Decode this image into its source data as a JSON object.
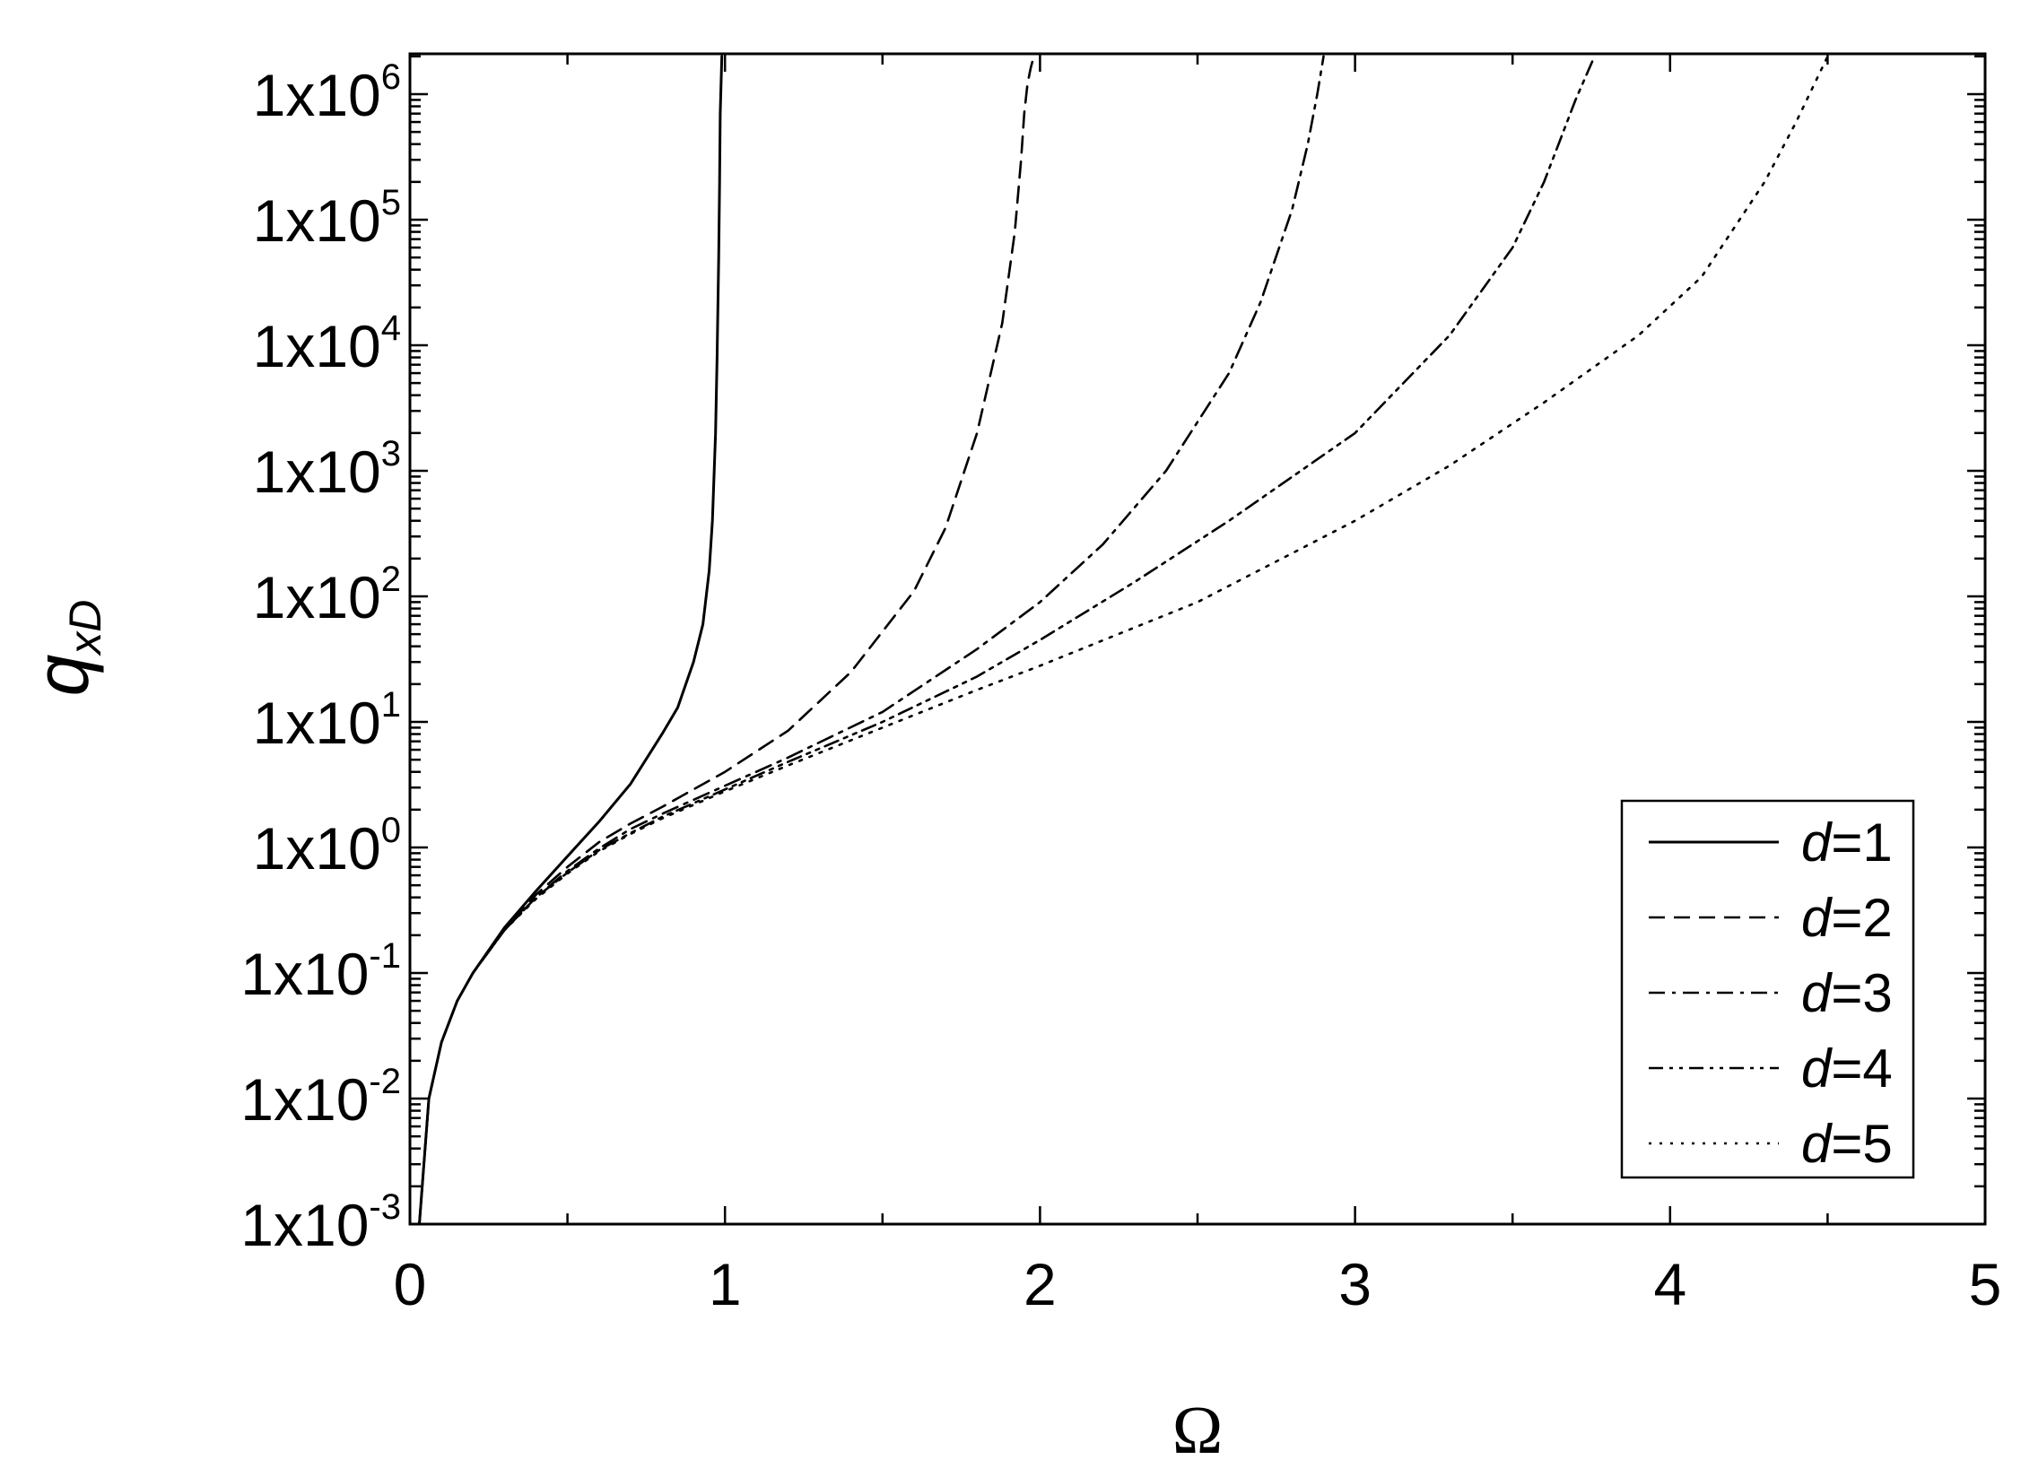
{
  "chart_data": {
    "type": "line",
    "title": "",
    "xlabel": "Ω",
    "ylabel": {
      "main": "q",
      "sub": "xD"
    },
    "x_scale": "linear",
    "y_scale": "log",
    "xlim": [
      0,
      5
    ],
    "ylim": [
      0.001,
      2000000
    ],
    "x_ticks": [
      0,
      1,
      2,
      3,
      4,
      5
    ],
    "x_tick_labels": [
      "0",
      "1",
      "2",
      "3",
      "4",
      "5"
    ],
    "y_ticks": [
      0.001,
      0.01,
      0.1,
      1,
      10,
      100,
      1000,
      10000,
      100000,
      1000000
    ],
    "y_tick_labels": [
      {
        "base": "1x10",
        "exp": "-3"
      },
      {
        "base": "1x10",
        "exp": "-2"
      },
      {
        "base": "1x10",
        "exp": "-1"
      },
      {
        "base": "1x10",
        "exp": "0"
      },
      {
        "base": "1x10",
        "exp": "1"
      },
      {
        "base": "1x10",
        "exp": "2"
      },
      {
        "base": "1x10",
        "exp": "3"
      },
      {
        "base": "1x10",
        "exp": "4"
      },
      {
        "base": "1x10",
        "exp": "5"
      },
      {
        "base": "1x10",
        "exp": "6"
      }
    ],
    "grid": false,
    "legend_position": "bottom-right",
    "series": [
      {
        "name": "1",
        "legend_prefix": "d",
        "dash": "solid",
        "x": [
          0.03,
          0.06,
          0.1,
          0.15,
          0.2,
          0.3,
          0.4,
          0.5,
          0.6,
          0.7,
          0.8,
          0.85,
          0.9,
          0.93,
          0.95,
          0.96,
          0.97,
          0.975,
          0.98,
          0.983,
          0.985,
          0.99
        ],
        "y": [
          0.001,
          0.01,
          0.028,
          0.06,
          0.1,
          0.23,
          0.45,
          0.85,
          1.6,
          3.2,
          8,
          13,
          30,
          60,
          160,
          400,
          2000,
          8000,
          50000,
          200000,
          700000,
          2000000
        ]
      },
      {
        "name": "2",
        "legend_prefix": "d",
        "dash": "dashed",
        "x": [
          0.03,
          0.06,
          0.1,
          0.15,
          0.2,
          0.3,
          0.4,
          0.5,
          0.6,
          0.7,
          0.8,
          1.0,
          1.2,
          1.4,
          1.6,
          1.7,
          1.8,
          1.88,
          1.92,
          1.94,
          1.95,
          1.96,
          1.97,
          1.98
        ],
        "y": [
          0.001,
          0.01,
          0.028,
          0.06,
          0.1,
          0.22,
          0.42,
          0.7,
          1.1,
          1.55,
          2.1,
          4,
          8.5,
          25,
          110,
          350,
          2000,
          15000,
          80000,
          300000,
          700000,
          1200000,
          1600000,
          2000000
        ]
      },
      {
        "name": "3",
        "legend_prefix": "d",
        "dash": "dashdot",
        "x": [
          0.03,
          0.06,
          0.1,
          0.15,
          0.2,
          0.3,
          0.4,
          0.5,
          0.6,
          0.7,
          0.8,
          1.0,
          1.2,
          1.5,
          1.8,
          2.0,
          2.2,
          2.4,
          2.6,
          2.7,
          2.8,
          2.85,
          2.88,
          2.9
        ],
        "y": [
          0.001,
          0.01,
          0.028,
          0.06,
          0.1,
          0.22,
          0.4,
          0.65,
          0.98,
          1.4,
          1.85,
          3.1,
          5.2,
          12,
          38,
          90,
          260,
          1000,
          6000,
          22000,
          120000,
          400000,
          1000000,
          2000000
        ]
      },
      {
        "name": "4",
        "legend_prefix": "d",
        "dash": "dashdotdot",
        "x": [
          0.03,
          0.06,
          0.1,
          0.15,
          0.2,
          0.3,
          0.4,
          0.5,
          0.6,
          0.7,
          0.8,
          1.0,
          1.2,
          1.5,
          1.8,
          2.0,
          2.3,
          2.6,
          3.0,
          3.3,
          3.5,
          3.6,
          3.7,
          3.76
        ],
        "y": [
          0.001,
          0.01,
          0.028,
          0.06,
          0.1,
          0.22,
          0.4,
          0.63,
          0.95,
          1.3,
          1.75,
          2.9,
          4.8,
          10,
          23,
          45,
          130,
          400,
          2000,
          12000,
          60000,
          200000,
          900000,
          2000000
        ]
      },
      {
        "name": "5",
        "legend_prefix": "d",
        "dash": "dotted",
        "x": [
          0.03,
          0.06,
          0.1,
          0.15,
          0.2,
          0.3,
          0.4,
          0.5,
          0.6,
          0.7,
          0.8,
          1.0,
          1.2,
          1.5,
          1.8,
          2.0,
          2.5,
          3.0,
          3.3,
          3.6,
          3.9,
          4.1,
          4.3,
          4.4,
          4.5
        ],
        "y": [
          0.001,
          0.01,
          0.028,
          0.06,
          0.1,
          0.22,
          0.39,
          0.62,
          0.93,
          1.28,
          1.7,
          2.8,
          4.5,
          9,
          18,
          28,
          90,
          400,
          1100,
          3500,
          12000,
          35000,
          200000,
          600000,
          2000000
        ]
      }
    ]
  }
}
